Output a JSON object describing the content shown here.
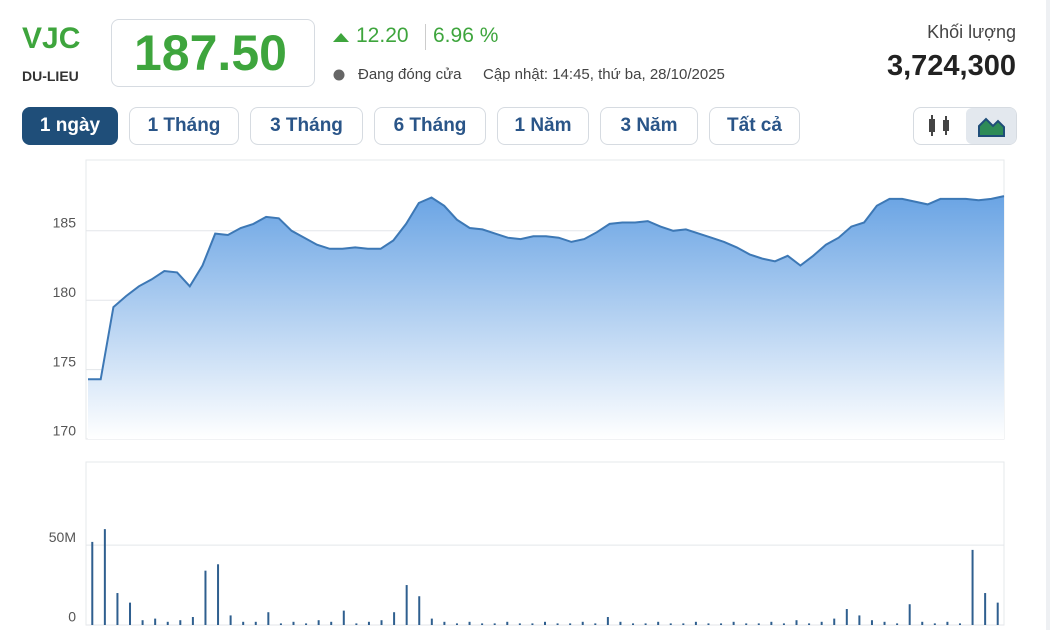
{
  "header": {
    "ticker": "VJC",
    "exchange": "DU-LIEU",
    "price": "187.50",
    "change": "12.20",
    "change_pct": "6.96 %",
    "status": "Đang đóng cửa",
    "updated": "Cập nhật: 14:45, thứ ba, 28/10/2025",
    "volume_label": "Khối lượng",
    "volume": "3,724,300"
  },
  "tabs": [
    "1 ngày",
    "1 Tháng",
    "3 Tháng",
    "6 Tháng",
    "1 Năm",
    "3 Năm",
    "Tất cả"
  ],
  "chart_data": [
    {
      "type": "area",
      "color": "#3d78b5",
      "values": [
        174.3,
        174.3,
        179.5,
        180.3,
        181.0,
        181.5,
        182.1,
        182.0,
        181.0,
        182.5,
        184.8,
        184.7,
        185.2,
        185.5,
        186.0,
        185.9,
        185.0,
        184.5,
        184.0,
        183.7,
        183.7,
        183.8,
        183.7,
        183.7,
        184.3,
        185.5,
        187.0,
        187.4,
        186.8,
        185.8,
        185.2,
        185.1,
        184.8,
        184.5,
        184.4,
        184.6,
        184.6,
        184.5,
        184.2,
        184.4,
        184.9,
        185.5,
        185.6,
        185.6,
        185.7,
        185.3,
        185.0,
        185.1,
        184.8,
        184.5,
        184.2,
        183.8,
        183.3,
        183.0,
        182.8,
        183.2,
        182.5,
        183.2,
        184.0,
        184.5,
        185.3,
        185.6,
        186.8,
        187.3,
        187.3,
        187.1,
        186.9,
        187.3,
        187.3,
        187.3,
        187.2,
        187.3,
        187.5
      ],
      "ylim": [
        170,
        190.1
      ],
      "yticks": [
        170,
        175,
        180,
        185
      ],
      "grid": true
    },
    {
      "type": "bar",
      "color": "#2f5f8f",
      "values": [
        52000000,
        60000000,
        20000000,
        14000000,
        3000000,
        4000000,
        2000000,
        3000000,
        5000000,
        34000000,
        38000000,
        6000000,
        2000000,
        2000000,
        8000000,
        1000000,
        2000000,
        1000000,
        3000000,
        2000000,
        9000000,
        1000000,
        2000000,
        3000000,
        8000000,
        25000000,
        18000000,
        4000000,
        2000000,
        1000000,
        2000000,
        1000000,
        1000000,
        2000000,
        1000000,
        1000000,
        2000000,
        1000000,
        1000000,
        2000000,
        1000000,
        5000000,
        2000000,
        1000000,
        1000000,
        2000000,
        1000000,
        1000000,
        2000000,
        1000000,
        1000000,
        2000000,
        1000000,
        1000000,
        2000000,
        1000000,
        3000000,
        1000000,
        2000000,
        4000000,
        10000000,
        6000000,
        3000000,
        2000000,
        1000000,
        13000000,
        2000000,
        1000000,
        2000000,
        1000000,
        47000000,
        20000000,
        14000000
      ],
      "ylim": [
        0,
        102000000
      ],
      "yticks": [
        0,
        {
          "value": 50000000,
          "label": "50M"
        }
      ],
      "grid": true
    }
  ]
}
